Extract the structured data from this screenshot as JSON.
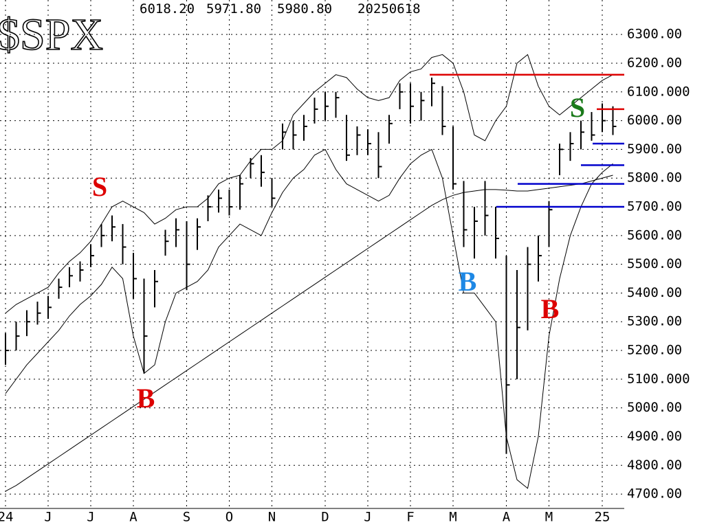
{
  "chart_data": {
    "type": "ohlc",
    "title": "$SPX",
    "info": [
      "6018.20",
      "5971.80",
      "5980.80",
      "20250618"
    ],
    "categories": [
      "24",
      null,
      null,
      null,
      "J",
      null,
      null,
      null,
      "J",
      null,
      null,
      null,
      "A",
      null,
      null,
      null,
      null,
      "S",
      null,
      null,
      null,
      "O",
      null,
      null,
      null,
      "N",
      null,
      null,
      null,
      null,
      "D",
      null,
      null,
      null,
      "J",
      null,
      null,
      null,
      "F",
      null,
      null,
      null,
      "M",
      null,
      null,
      null,
      null,
      "A",
      null,
      null,
      null,
      "M",
      null,
      null,
      null,
      null,
      "25",
      null
    ],
    "high": [
      5260,
      5300,
      5340,
      5370,
      5390,
      5450,
      5490,
      5510,
      5570,
      5640,
      5670,
      5640,
      5540,
      5450,
      5480,
      5620,
      5660,
      5650,
      5660,
      5740,
      5760,
      5760,
      5810,
      5870,
      5880,
      5800,
      5990,
      6000,
      6020,
      6080,
      6100,
      6100,
      6020,
      5980,
      5970,
      5960,
      6020,
      6130,
      6130,
      6100,
      6150,
      6120,
      5980,
      5790,
      5700,
      5790,
      5700,
      5530,
      5480,
      5560,
      5600,
      5720,
      5920,
      5960,
      6000,
      6030,
      6060,
      6050
    ],
    "low": [
      5150,
      5200,
      5250,
      5290,
      5310,
      5380,
      5420,
      5440,
      5490,
      5560,
      5580,
      5500,
      5380,
      5120,
      5350,
      5530,
      5560,
      5410,
      5550,
      5650,
      5680,
      5670,
      5690,
      5800,
      5770,
      5700,
      5900,
      5900,
      5930,
      5990,
      6000,
      6010,
      5860,
      5880,
      5880,
      5800,
      5920,
      6040,
      5990,
      6000,
      6050,
      5950,
      5760,
      5560,
      5520,
      5600,
      5520,
      4840,
      5100,
      5270,
      5440,
      5560,
      5810,
      5860,
      5900,
      5930,
      5960,
      5950
    ],
    "close": [
      5200,
      5250,
      5300,
      5330,
      5350,
      5420,
      5460,
      5480,
      5530,
      5600,
      5630,
      5560,
      5450,
      5250,
      5440,
      5580,
      5620,
      5500,
      5630,
      5700,
      5730,
      5700,
      5780,
      5850,
      5820,
      5730,
      5960,
      5950,
      5980,
      6040,
      6050,
      6080,
      5880,
      5950,
      5920,
      5840,
      5990,
      6100,
      6050,
      6070,
      6130,
      5980,
      5780,
      5620,
      5650,
      5670,
      5590,
      5080,
      5280,
      5500,
      5530,
      5690,
      5900,
      5920,
      5960,
      5950,
      6000,
      5980
    ],
    "lines": [
      {
        "color": "#000000",
        "values": [
          5330,
          5360,
          5380,
          5400,
          5420,
          5470,
          5510,
          5540,
          5580,
          5640,
          5700,
          5720,
          5700,
          5680,
          5640,
          5660,
          5690,
          5700,
          5700,
          5730,
          5780,
          5800,
          5810,
          5860,
          5900,
          5900,
          5930,
          6020,
          6060,
          6100,
          6130,
          6160,
          6150,
          6110,
          6080,
          6070,
          6080,
          6140,
          6170,
          6180,
          6220,
          6230,
          6200,
          6100,
          5950,
          5930,
          6000,
          6050,
          6200,
          6230,
          6120,
          6050,
          6020,
          6050,
          6080,
          6110,
          6140,
          6160
        ]
      },
      {
        "color": "#000000",
        "values": [
          5050,
          5100,
          5150,
          5190,
          5230,
          5270,
          5320,
          5360,
          5390,
          5430,
          5490,
          5450,
          5250,
          5120,
          5150,
          5300,
          5400,
          5420,
          5440,
          5480,
          5560,
          5600,
          5640,
          5620,
          5600,
          5680,
          5750,
          5800,
          5830,
          5880,
          5900,
          5830,
          5780,
          5760,
          5740,
          5720,
          5740,
          5800,
          5850,
          5880,
          5900,
          5800,
          5600,
          5400,
          5400,
          5350,
          5300,
          4900,
          4750,
          4720,
          4900,
          5250,
          5450,
          5600,
          5700,
          5780,
          5820,
          5850
        ]
      },
      {
        "color": "#000000",
        "values": [
          4710,
          4730,
          4755,
          4780,
          4805,
          4830,
          4855,
          4880,
          4905,
          4930,
          4955,
          4980,
          5005,
          5030,
          5055,
          5080,
          5105,
          5130,
          5155,
          5180,
          5205,
          5230,
          5255,
          5280,
          5305,
          5330,
          5355,
          5380,
          5405,
          5430,
          5455,
          5480,
          5505,
          5530,
          5555,
          5580,
          5605,
          5630,
          5655,
          5680,
          5705,
          5725,
          5740,
          5750,
          5755,
          5760,
          5760,
          5758,
          5755,
          5755,
          5760,
          5765,
          5770,
          5775,
          5780,
          5790,
          5800,
          5810
        ]
      }
    ],
    "levels": [
      {
        "value": 6160,
        "color": "#dd0000"
      },
      {
        "value": 6040,
        "color": "#dd0000"
      },
      {
        "value": 5920,
        "color": "#0000cc"
      },
      {
        "value": 5845,
        "color": "#0000cc"
      },
      {
        "value": 5780,
        "color": "#0000cc"
      },
      {
        "value": 5700,
        "color": "#0000cc"
      }
    ],
    "annotations": [
      {
        "text": "S",
        "color": "#dd0000"
      },
      {
        "text": "B",
        "color": "#dd0000"
      },
      {
        "text": "B",
        "color": "#1e88e5"
      },
      {
        "text": "B",
        "color": "#dd0000"
      },
      {
        "text": "S",
        "color": "#1a7a1a"
      }
    ],
    "ylim": [
      4650,
      6420
    ],
    "yticks": [
      {
        "value": 6300,
        "label": "6300.00"
      },
      {
        "value": 6200,
        "label": "6200.00"
      },
      {
        "value": 6100,
        "label": "6100.000"
      },
      {
        "value": 6000,
        "label": "6000.00"
      },
      {
        "value": 5900,
        "label": "5900.00"
      },
      {
        "value": 5800,
        "label": "5800.00"
      },
      {
        "value": 5700,
        "label": "5700.00"
      },
      {
        "value": 5600,
        "label": "5600.00"
      },
      {
        "value": 5500,
        "label": "5500.00"
      },
      {
        "value": 5400,
        "label": "5400.00"
      },
      {
        "value": 5300,
        "label": "5300.00"
      },
      {
        "value": 5200,
        "label": "5200.00"
      },
      {
        "value": 5100,
        "label": "5100.000"
      },
      {
        "value": 5000,
        "label": "5000.00"
      },
      {
        "value": 4900,
        "label": "4900.00"
      },
      {
        "value": 4800,
        "label": "4800.00"
      },
      {
        "value": 4700,
        "label": "4700.00"
      }
    ],
    "grid": true
  }
}
